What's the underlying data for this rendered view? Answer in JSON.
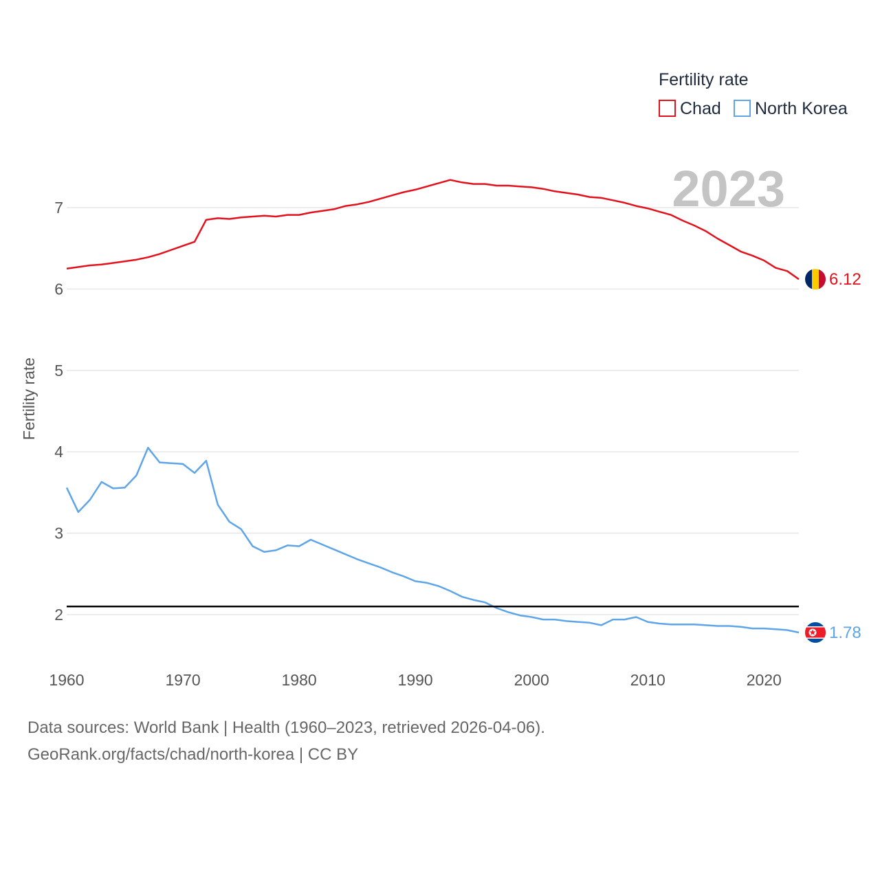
{
  "chart_data": {
    "type": "line",
    "ylabel": "Fertility rate",
    "xlabel": "",
    "ylim": [
      1.4,
      7.65
    ],
    "xlim": [
      1960,
      2023
    ],
    "yticks": [
      2,
      3,
      4,
      5,
      6,
      7
    ],
    "xticks": [
      1960,
      1970,
      1980,
      1990,
      2000,
      2010,
      2020
    ],
    "legend_position": "top-right",
    "legend": {
      "title": "Fertility rate"
    },
    "year_label": "2023",
    "reference_line": {
      "value": 2.1
    },
    "series": [
      {
        "name": "Chad",
        "color": "#e3111b",
        "end_label": "6.12",
        "start_year": 1960,
        "values": [
          6.25,
          6.27,
          6.29,
          6.3,
          6.32,
          6.34,
          6.36,
          6.39,
          6.43,
          6.48,
          6.53,
          6.58,
          6.85,
          6.87,
          6.86,
          6.88,
          6.89,
          6.9,
          6.89,
          6.91,
          6.91,
          6.94,
          6.96,
          6.98,
          7.02,
          7.04,
          7.07,
          7.11,
          7.15,
          7.19,
          7.22,
          7.26,
          7.3,
          7.34,
          7.31,
          7.29,
          7.29,
          7.27,
          7.27,
          7.26,
          7.25,
          7.23,
          7.2,
          7.18,
          7.16,
          7.13,
          7.12,
          7.09,
          7.06,
          7.02,
          6.99,
          6.95,
          6.91,
          6.84,
          6.78,
          6.71,
          6.62,
          6.54,
          6.46,
          6.41,
          6.35,
          6.26,
          6.22,
          6.12
        ]
      },
      {
        "name": "North Korea",
        "color": "#5da5e8",
        "end_label": "1.78",
        "start_year": 1960,
        "values": [
          3.56,
          3.26,
          3.41,
          3.63,
          3.55,
          3.56,
          3.71,
          4.05,
          3.87,
          3.86,
          3.85,
          3.74,
          3.89,
          3.35,
          3.14,
          3.05,
          2.84,
          2.77,
          2.79,
          2.85,
          2.84,
          2.92,
          2.86,
          2.8,
          2.74,
          2.68,
          2.63,
          2.58,
          2.52,
          2.47,
          2.41,
          2.39,
          2.35,
          2.29,
          2.22,
          2.18,
          2.15,
          2.08,
          2.03,
          1.99,
          1.97,
          1.94,
          1.94,
          1.92,
          1.91,
          1.9,
          1.87,
          1.94,
          1.94,
          1.97,
          1.91,
          1.89,
          1.88,
          1.88,
          1.88,
          1.87,
          1.86,
          1.86,
          1.85,
          1.83,
          1.83,
          1.82,
          1.81,
          1.78
        ]
      }
    ]
  },
  "footer": {
    "line1": "Data sources: World Bank | Health (1960–2023, retrieved 2026-04-06).",
    "line2": "GeoRank.org/facts/chad/north-korea | CC BY"
  }
}
